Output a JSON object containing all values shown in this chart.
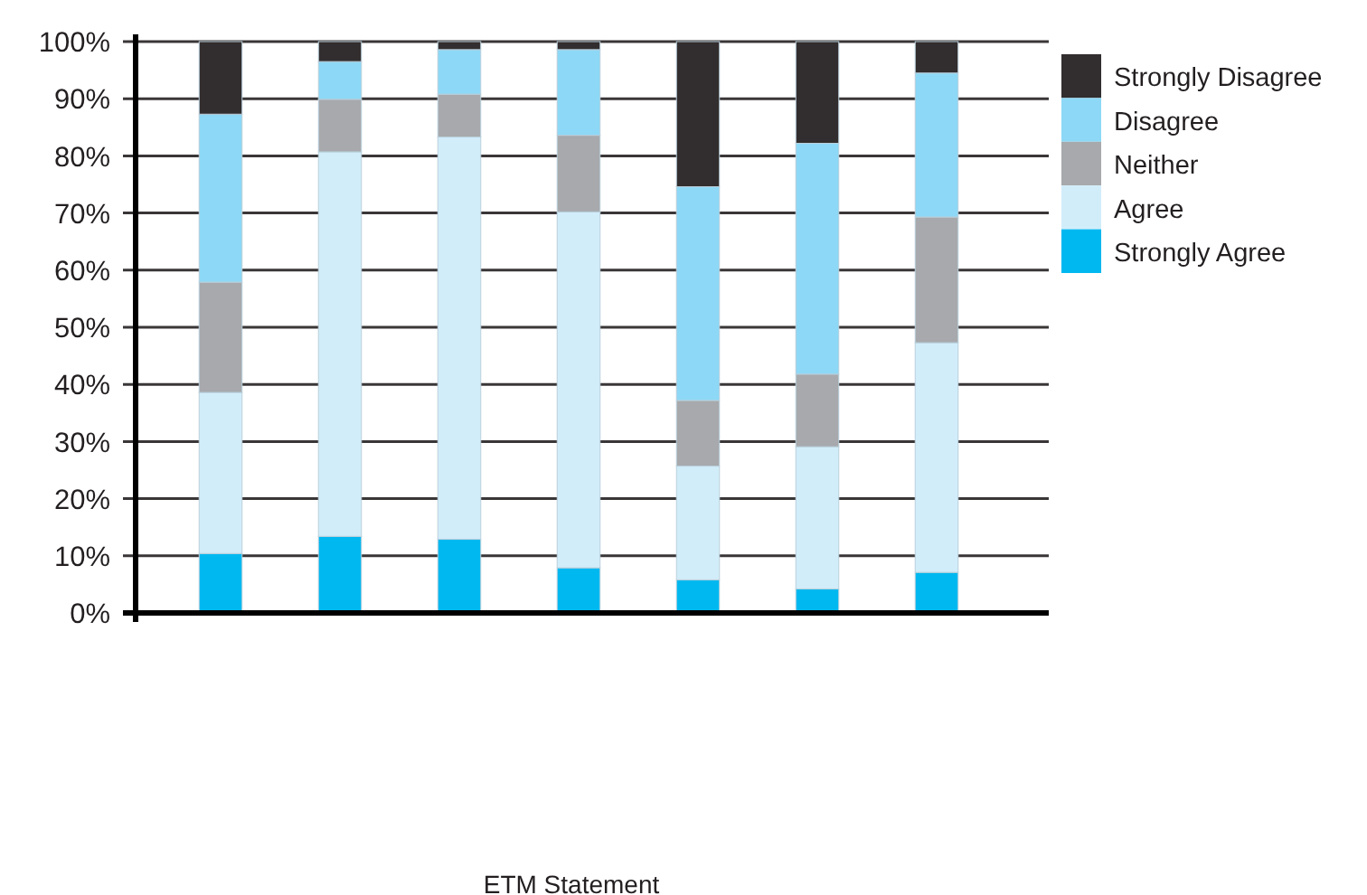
{
  "chart_data": {
    "type": "bar",
    "stacked": true,
    "categories": [
      null,
      null,
      null,
      null,
      null,
      null,
      null
    ],
    "series": [
      {
        "name": "Strongly Agree",
        "color": "#00b8f0",
        "values": [
          10.4,
          13.4,
          12.9,
          7.9,
          5.8,
          4.2,
          7.1
        ]
      },
      {
        "name": "Agree",
        "color": "#d2edfa",
        "values": [
          28.2,
          67.3,
          70.4,
          62.3,
          19.9,
          24.9,
          40.2
        ]
      },
      {
        "name": "Neither",
        "color": "#a7a9ac",
        "values": [
          19.3,
          9.2,
          7.5,
          13.4,
          11.5,
          12.7,
          22.0
        ]
      },
      {
        "name": "Disagree",
        "color": "#8dd8f6",
        "values": [
          29.4,
          6.6,
          7.8,
          15.0,
          37.4,
          40.4,
          25.2
        ]
      },
      {
        "name": "Strongly Disagree",
        "color": "#322d2e",
        "values": [
          12.7,
          3.5,
          1.4,
          1.4,
          25.4,
          17.8,
          5.5
        ]
      }
    ],
    "ylim": [
      0,
      100
    ],
    "yticks": [
      {
        "value": 0,
        "label": "0%"
      },
      {
        "value": 10,
        "label": "10%"
      },
      {
        "value": 20,
        "label": "20%"
      },
      {
        "value": 30,
        "label": "30%"
      },
      {
        "value": 40,
        "label": "40%"
      },
      {
        "value": 50,
        "label": "50%"
      },
      {
        "value": 60,
        "label": "60%"
      },
      {
        "value": 70,
        "label": "70%"
      },
      {
        "value": 80,
        "label": "80%"
      },
      {
        "value": 90,
        "label": "90%"
      },
      {
        "value": 100,
        "label": "100%"
      }
    ],
    "grid": "y",
    "legend": "top right",
    "annotations": [
      "ETM Statement"
    ]
  }
}
